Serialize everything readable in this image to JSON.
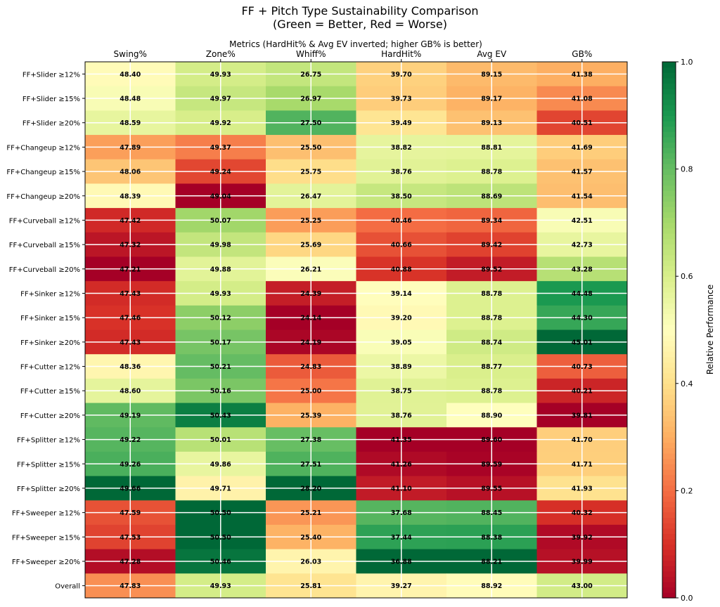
{
  "chart_data": {
    "type": "heatmap",
    "title": "FF + Pitch Type Sustainability Comparison",
    "subtitle": "(Green = Better, Red = Worse)",
    "xlabel": "Metrics (HardHit% & Avg EV inverted; higher GB% is better)",
    "colorbar_label": "Relative Performance",
    "colorbar_ticks": [
      "0.0",
      "0.2",
      "0.4",
      "0.6",
      "0.8",
      "1.0"
    ],
    "colormap": [
      "#a50026",
      "#d73027",
      "#f46d43",
      "#fdae61",
      "#fee08b",
      "#ffffbf",
      "#d9ef8b",
      "#a6d96a",
      "#66bd63",
      "#1a9850",
      "#006837"
    ],
    "columns": [
      "Swing%",
      "Zone%",
      "Whiff%",
      "HardHit%",
      "Avg EV",
      "GB%"
    ],
    "inverted": [
      false,
      false,
      false,
      true,
      true,
      false
    ],
    "rows": [
      "FF+Slider ≥12%",
      "FF+Slider ≥15%",
      "FF+Slider ≥20%",
      "FF+Changeup ≥12%",
      "FF+Changeup ≥15%",
      "FF+Changeup ≥20%",
      "FF+Curveball ≥12%",
      "FF+Curveball ≥15%",
      "FF+Curveball ≥20%",
      "FF+Sinker ≥12%",
      "FF+Sinker ≥15%",
      "FF+Sinker ≥20%",
      "FF+Cutter ≥12%",
      "FF+Cutter ≥15%",
      "FF+Cutter ≥20%",
      "FF+Splitter ≥12%",
      "FF+Splitter ≥15%",
      "FF+Splitter ≥20%",
      "FF+Sweeper ≥12%",
      "FF+Sweeper ≥15%",
      "FF+Sweeper ≥20%",
      "Overall"
    ],
    "values": [
      [
        48.4,
        49.93,
        26.75,
        39.7,
        89.15,
        41.38
      ],
      [
        48.48,
        49.97,
        26.97,
        39.73,
        89.17,
        41.08
      ],
      [
        48.59,
        49.92,
        27.5,
        39.49,
        89.13,
        40.51
      ],
      [
        47.89,
        49.37,
        25.5,
        38.82,
        88.81,
        41.69
      ],
      [
        48.06,
        49.24,
        25.75,
        38.76,
        88.78,
        41.57
      ],
      [
        48.39,
        49.04,
        26.47,
        38.5,
        88.69,
        41.54
      ],
      [
        47.42,
        50.07,
        25.25,
        40.46,
        89.34,
        42.51
      ],
      [
        47.32,
        49.98,
        25.69,
        40.66,
        89.42,
        42.73
      ],
      [
        47.21,
        49.88,
        26.21,
        40.88,
        89.52,
        43.28
      ],
      [
        47.43,
        49.93,
        24.39,
        39.14,
        88.78,
        44.48
      ],
      [
        47.46,
        50.12,
        24.14,
        39.2,
        88.78,
        44.3
      ],
      [
        47.43,
        50.17,
        24.19,
        39.05,
        88.74,
        45.01
      ],
      [
        48.36,
        50.21,
        24.83,
        38.89,
        88.77,
        40.73
      ],
      [
        48.6,
        50.16,
        25.0,
        38.75,
        88.78,
        40.21
      ],
      [
        49.19,
        50.43,
        25.39,
        38.76,
        88.9,
        39.81
      ],
      [
        49.22,
        50.01,
        27.38,
        41.35,
        89.6,
        41.7
      ],
      [
        49.26,
        49.86,
        27.51,
        41.26,
        89.59,
        41.71
      ],
      [
        49.66,
        49.71,
        28.2,
        41.1,
        89.55,
        41.93
      ],
      [
        47.59,
        50.5,
        25.21,
        37.68,
        88.45,
        40.32
      ],
      [
        47.53,
        50.5,
        25.4,
        37.44,
        88.38,
        39.92
      ],
      [
        47.28,
        50.46,
        26.03,
        36.88,
        88.21,
        39.99
      ],
      [
        47.83,
        49.93,
        25.81,
        39.27,
        88.92,
        43.0
      ]
    ]
  }
}
